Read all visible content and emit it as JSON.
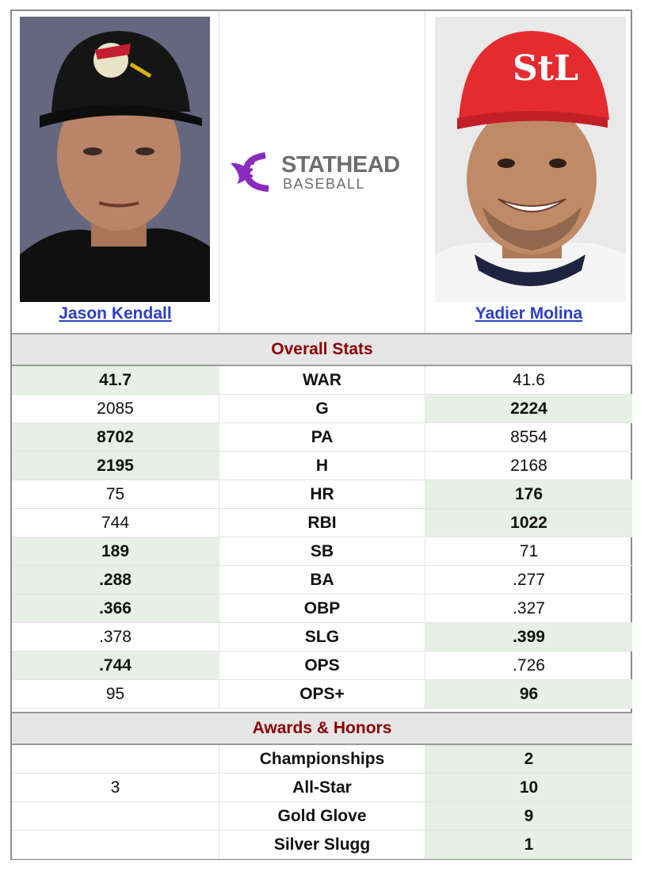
{
  "players": {
    "left": {
      "name": "Jason Kendall"
    },
    "right": {
      "name": "Yadier Molina"
    }
  },
  "logo": {
    "line1": "STATHEAD",
    "line2": "BASEBALL"
  },
  "colors": {
    "win_bg": "#e7f0e5",
    "section_text": "#8b0000",
    "link": "#2c3fc7",
    "logo_purple": "#8a2bbf"
  },
  "sections": {
    "overall": "Overall Stats",
    "awards": "Awards & Honors"
  },
  "overall_rows": [
    {
      "stat": "WAR",
      "left": "41.7",
      "right": "41.6",
      "winner": "left"
    },
    {
      "stat": "G",
      "left": "2085",
      "right": "2224",
      "winner": "right"
    },
    {
      "stat": "PA",
      "left": "8702",
      "right": "8554",
      "winner": "left"
    },
    {
      "stat": "H",
      "left": "2195",
      "right": "2168",
      "winner": "left"
    },
    {
      "stat": "HR",
      "left": "75",
      "right": "176",
      "winner": "right"
    },
    {
      "stat": "RBI",
      "left": "744",
      "right": "1022",
      "winner": "right"
    },
    {
      "stat": "SB",
      "left": "189",
      "right": "71",
      "winner": "left"
    },
    {
      "stat": "BA",
      "left": ".288",
      "right": ".277",
      "winner": "left"
    },
    {
      "stat": "OBP",
      "left": ".366",
      "right": ".327",
      "winner": "left"
    },
    {
      "stat": "SLG",
      "left": ".378",
      "right": ".399",
      "winner": "right"
    },
    {
      "stat": "OPS",
      "left": ".744",
      "right": ".726",
      "winner": "left"
    },
    {
      "stat": "OPS+",
      "left": "95",
      "right": "96",
      "winner": "right"
    }
  ],
  "award_rows": [
    {
      "stat": "Championships",
      "left": "",
      "right": "2",
      "winner": "right"
    },
    {
      "stat": "All-Star",
      "left": "3",
      "right": "10",
      "winner": "right"
    },
    {
      "stat": "Gold Glove",
      "left": "",
      "right": "9",
      "winner": "right"
    },
    {
      "stat": "Silver Slugg",
      "left": "",
      "right": "1",
      "winner": "right"
    }
  ]
}
